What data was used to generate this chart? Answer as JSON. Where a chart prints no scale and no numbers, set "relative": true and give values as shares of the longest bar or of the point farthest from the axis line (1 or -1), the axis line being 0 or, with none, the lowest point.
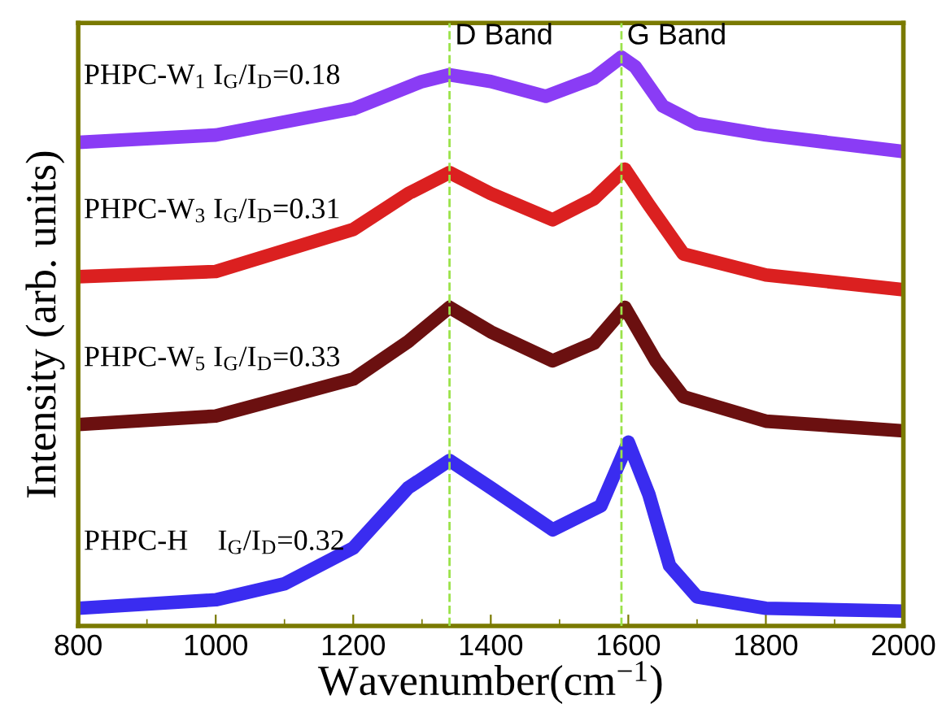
{
  "chart_data": {
    "type": "line",
    "relative": true,
    "xlabel": "Wavenumber(cm$^{−1}$)",
    "ylabel": "Intensity (arb. units)",
    "xlim": [
      800,
      2000
    ],
    "xticks": [
      800,
      1000,
      1200,
      1400,
      1600,
      1800,
      2000
    ],
    "tick_labels": "x",
    "legend": false,
    "grid": false,
    "marker": "none",
    "line_style": "solid",
    "ref_lines": [
      {
        "axis": "x",
        "value": 1340,
        "label": "D Band",
        "color": "#9be34a",
        "line_style": "dashed"
      },
      {
        "axis": "x",
        "value": 1590,
        "label": "G Band",
        "color": "#9be34a",
        "line_style": "dashed"
      }
    ],
    "series": [
      {
        "name": "PHPC-W$_{1}$ I$_{G}$/I$_{D}$=0.18",
        "color": "#8a3cf5",
        "x": [
          800,
          1000,
          1200,
          1300,
          1340,
          1400,
          1480,
          1550,
          1590,
          1610,
          1650,
          1700,
          1800,
          2000
        ],
        "values": [
          0.85,
          0.863,
          0.909,
          0.957,
          0.969,
          0.957,
          0.931,
          0.963,
          1,
          0.983,
          0.914,
          0.883,
          0.863,
          0.834
        ]
      },
      {
        "name": "PHPC-W$_{3}$ I$_{G}$/I$_{D}$=0.31",
        "color": "#db2020",
        "x": [
          800,
          1000,
          1200,
          1280,
          1340,
          1400,
          1490,
          1550,
          1595,
          1630,
          1680,
          1800,
          2000
        ],
        "values": [
          0.614,
          0.623,
          0.697,
          0.76,
          0.797,
          0.76,
          0.714,
          0.751,
          0.803,
          0.74,
          0.654,
          0.617,
          0.591
        ]
      },
      {
        "name": "PHPC-W$_{5}$ I$_{G}$/I$_{D}$=0.33",
        "color": "#6b1010",
        "x": [
          800,
          1000,
          1200,
          1280,
          1340,
          1400,
          1490,
          1550,
          1595,
          1640,
          1680,
          1800,
          2000
        ],
        "values": [
          0.354,
          0.369,
          0.434,
          0.5,
          0.56,
          0.517,
          0.466,
          0.497,
          0.56,
          0.466,
          0.403,
          0.36,
          0.343
        ]
      },
      {
        "name": "PHPC-H    I$_{G}$/I$_{D}$=0.32",
        "color": "#3a2cf0",
        "x": [
          800,
          1000,
          1100,
          1200,
          1280,
          1340,
          1400,
          1490,
          1560,
          1600,
          1630,
          1660,
          1700,
          1800,
          2000
        ],
        "values": [
          0.031,
          0.046,
          0.074,
          0.137,
          0.243,
          0.291,
          0.243,
          0.169,
          0.211,
          0.323,
          0.231,
          0.106,
          0.051,
          0.031,
          0.026
        ]
      }
    ]
  }
}
